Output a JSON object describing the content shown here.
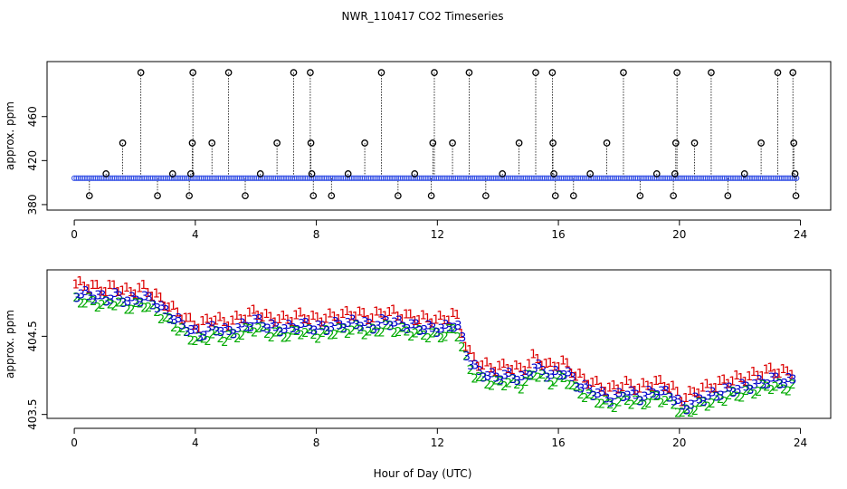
{
  "chart_data": [
    {
      "type": "scatter",
      "panel": "top",
      "title": "NWR_110417  CO2 Timeseries",
      "ylabel": "approx. ppm",
      "xlabel": "",
      "x_ticks": [
        "0",
        "4",
        "8",
        "12",
        "16",
        "20",
        "24"
      ],
      "y_ticks": [
        "380",
        "420",
        "460"
      ],
      "xlim": [
        -0.9,
        25
      ],
      "ylim": [
        375,
        510
      ],
      "grid": false,
      "baseline_value": 404,
      "baseline_color": "#3a55e6",
      "marker_color": "#000000",
      "spike_values": [
        {
          "x": 0.5,
          "y": 388
        },
        {
          "x": 1.05,
          "y": 408
        },
        {
          "x": 1.6,
          "y": 436
        },
        {
          "x": 2.2,
          "y": 500
        },
        {
          "x": 2.75,
          "y": 388
        },
        {
          "x": 3.25,
          "y": 408
        },
        {
          "x": 3.8,
          "y": 388
        },
        {
          "x": 3.85,
          "y": 408
        },
        {
          "x": 3.9,
          "y": 436
        },
        {
          "x": 3.92,
          "y": 500
        },
        {
          "x": 4.55,
          "y": 436
        },
        {
          "x": 5.1,
          "y": 500
        },
        {
          "x": 5.65,
          "y": 388
        },
        {
          "x": 6.15,
          "y": 408
        },
        {
          "x": 6.7,
          "y": 436
        },
        {
          "x": 7.25,
          "y": 500
        },
        {
          "x": 7.8,
          "y": 500
        },
        {
          "x": 7.82,
          "y": 436
        },
        {
          "x": 7.85,
          "y": 408
        },
        {
          "x": 7.9,
          "y": 388
        },
        {
          "x": 8.5,
          "y": 388
        },
        {
          "x": 9.05,
          "y": 408
        },
        {
          "x": 9.6,
          "y": 436
        },
        {
          "x": 10.15,
          "y": 500
        },
        {
          "x": 10.7,
          "y": 388
        },
        {
          "x": 11.25,
          "y": 408
        },
        {
          "x": 11.8,
          "y": 388
        },
        {
          "x": 11.85,
          "y": 436
        },
        {
          "x": 11.9,
          "y": 500
        },
        {
          "x": 12.5,
          "y": 436
        },
        {
          "x": 13.05,
          "y": 500
        },
        {
          "x": 13.6,
          "y": 388
        },
        {
          "x": 14.15,
          "y": 408
        },
        {
          "x": 14.7,
          "y": 436
        },
        {
          "x": 15.25,
          "y": 500
        },
        {
          "x": 15.8,
          "y": 500
        },
        {
          "x": 15.82,
          "y": 436
        },
        {
          "x": 15.85,
          "y": 408
        },
        {
          "x": 15.9,
          "y": 388
        },
        {
          "x": 16.5,
          "y": 388
        },
        {
          "x": 17.05,
          "y": 408
        },
        {
          "x": 17.6,
          "y": 436
        },
        {
          "x": 18.15,
          "y": 500
        },
        {
          "x": 18.7,
          "y": 388
        },
        {
          "x": 19.25,
          "y": 408
        },
        {
          "x": 19.8,
          "y": 388
        },
        {
          "x": 19.85,
          "y": 408
        },
        {
          "x": 19.88,
          "y": 436
        },
        {
          "x": 19.92,
          "y": 500
        },
        {
          "x": 20.5,
          "y": 436
        },
        {
          "x": 21.05,
          "y": 500
        },
        {
          "x": 21.6,
          "y": 388
        },
        {
          "x": 22.15,
          "y": 408
        },
        {
          "x": 22.7,
          "y": 436
        },
        {
          "x": 23.25,
          "y": 500
        },
        {
          "x": 23.75,
          "y": 500
        },
        {
          "x": 23.78,
          "y": 436
        },
        {
          "x": 23.82,
          "y": 408
        },
        {
          "x": 23.85,
          "y": 388
        }
      ]
    },
    {
      "type": "scatter",
      "panel": "bottom",
      "title": "",
      "ylabel": "approx. ppm",
      "xlabel": "Hour of Day (UTC)",
      "x_ticks": [
        "0",
        "4",
        "8",
        "12",
        "16",
        "20",
        "24"
      ],
      "y_ticks": [
        "403.5",
        "404.5"
      ],
      "xlim": [
        -0.9,
        25
      ],
      "ylim": [
        403.45,
        405.35
      ],
      "grid": false,
      "series": [
        {
          "name": "1",
          "color": "#dd0000",
          "offset": 0.12
        },
        {
          "name": "2",
          "color": "#00aa00",
          "offset": -0.08
        },
        {
          "name": "3",
          "color": "#0000cc",
          "offset": 0.0
        }
      ],
      "trend": [
        {
          "x": 0.0,
          "y": 405.05
        },
        {
          "x": 0.5,
          "y": 405.03
        },
        {
          "x": 1.0,
          "y": 404.98
        },
        {
          "x": 1.3,
          "y": 405.02
        },
        {
          "x": 1.8,
          "y": 404.95
        },
        {
          "x": 2.3,
          "y": 405.0
        },
        {
          "x": 2.7,
          "y": 404.9
        },
        {
          "x": 3.3,
          "y": 404.72
        },
        {
          "x": 3.8,
          "y": 404.58
        },
        {
          "x": 4.1,
          "y": 404.52
        },
        {
          "x": 4.6,
          "y": 404.62
        },
        {
          "x": 5.0,
          "y": 404.55
        },
        {
          "x": 5.5,
          "y": 404.62
        },
        {
          "x": 6.0,
          "y": 404.7
        },
        {
          "x": 6.4,
          "y": 404.62
        },
        {
          "x": 7.0,
          "y": 404.6
        },
        {
          "x": 7.5,
          "y": 404.65
        },
        {
          "x": 8.0,
          "y": 404.6
        },
        {
          "x": 8.7,
          "y": 404.65
        },
        {
          "x": 9.3,
          "y": 404.68
        },
        {
          "x": 9.8,
          "y": 404.63
        },
        {
          "x": 10.3,
          "y": 404.7
        },
        {
          "x": 10.8,
          "y": 404.65
        },
        {
          "x": 11.3,
          "y": 404.62
        },
        {
          "x": 11.8,
          "y": 404.6
        },
        {
          "x": 12.2,
          "y": 404.6
        },
        {
          "x": 12.6,
          "y": 404.68
        },
        {
          "x": 13.0,
          "y": 404.2
        },
        {
          "x": 13.3,
          "y": 404.05
        },
        {
          "x": 13.8,
          "y": 403.98
        },
        {
          "x": 14.4,
          "y": 404.0
        },
        {
          "x": 14.8,
          "y": 403.95
        },
        {
          "x": 15.2,
          "y": 404.12
        },
        {
          "x": 15.7,
          "y": 404.0
        },
        {
          "x": 16.2,
          "y": 404.05
        },
        {
          "x": 16.6,
          "y": 403.88
        },
        {
          "x": 17.2,
          "y": 403.78
        },
        {
          "x": 17.7,
          "y": 403.7
        },
        {
          "x": 18.2,
          "y": 403.78
        },
        {
          "x": 18.7,
          "y": 403.72
        },
        {
          "x": 19.2,
          "y": 403.8
        },
        {
          "x": 19.7,
          "y": 403.75
        },
        {
          "x": 20.1,
          "y": 403.58
        },
        {
          "x": 20.6,
          "y": 403.7
        },
        {
          "x": 21.1,
          "y": 403.75
        },
        {
          "x": 21.6,
          "y": 403.82
        },
        {
          "x": 22.1,
          "y": 403.85
        },
        {
          "x": 22.6,
          "y": 403.9
        },
        {
          "x": 23.0,
          "y": 403.95
        },
        {
          "x": 23.5,
          "y": 403.92
        },
        {
          "x": 23.8,
          "y": 403.95
        }
      ]
    }
  ]
}
